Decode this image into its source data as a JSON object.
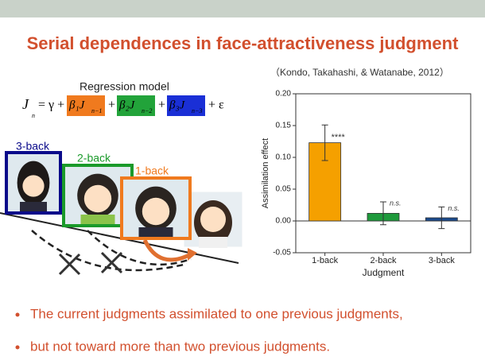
{
  "title": "Serial dependences in face-attractiveness judgment",
  "citation": "（Kondo, Takahashi, & Watanabe, 2012）",
  "model": {
    "label": "Regression model",
    "lhs": "J",
    "lhs_sub": "n",
    "equals": "= γ +",
    "terms": [
      {
        "text": "β₁J",
        "sub": "n−1",
        "color": "#f07a1e"
      },
      {
        "text": "β₂J",
        "sub": "n−2",
        "color": "#22a33a"
      },
      {
        "text": "β₃J",
        "sub": "n−3",
        "color": "#1a2fd6"
      }
    ],
    "tail": "+ ε"
  },
  "faces": [
    {
      "label": "3-back",
      "color": "#0a0a8a"
    },
    {
      "label": "2-back",
      "color": "#1a9a2a"
    },
    {
      "label": "1-back",
      "color": "#f07a1e"
    }
  ],
  "bullets": [
    "The current judgments assimilated to one previous judgments,",
    "but not toward more than two previous judgments."
  ],
  "chart_data": {
    "type": "bar",
    "categories": [
      "1-back",
      "2-back",
      "3-back"
    ],
    "values": [
      0.123,
      0.012,
      0.005
    ],
    "errors": [
      0.028,
      0.018,
      0.017
    ],
    "annotations": [
      "****",
      "n.s.",
      "n.s."
    ],
    "colors": [
      "#f5a000",
      "#1f9a3c",
      "#1b4a8c"
    ],
    "xlabel": "Judgment",
    "ylabel": "Assimilation effect",
    "ylim": [
      -0.05,
      0.2
    ],
    "yticks": [
      {
        "value": -0.05,
        "label": "-0.05"
      },
      {
        "value": 0,
        "label": "0.00"
      },
      {
        "value": 0.05,
        "label": "0.05"
      },
      {
        "value": 0.1,
        "label": "0.10"
      },
      {
        "value": 0.15,
        "label": "0.15"
      },
      {
        "value": 0.2,
        "label": "0.20"
      }
    ]
  }
}
